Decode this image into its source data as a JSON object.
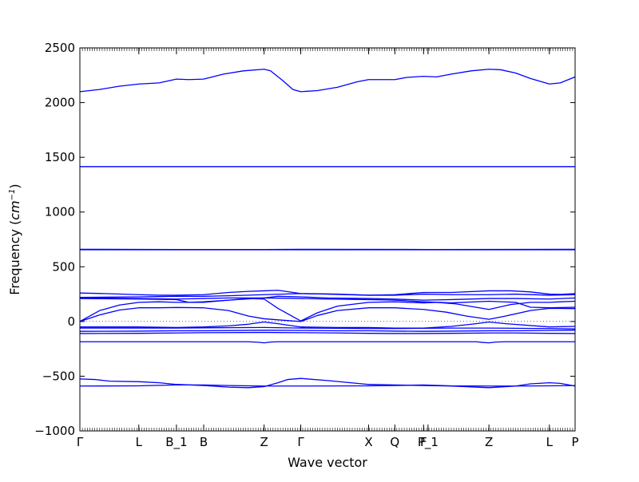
{
  "chart_data": {
    "type": "line",
    "title": "",
    "xlabel": "Wave vector",
    "ylabel": "Frequency (",
    "ylabel_unit_base": "cm",
    "ylabel_unit_exp": "−1",
    "ylabel_close": ")",
    "ylim": [
      -1000,
      2500
    ],
    "yticks": [
      -1000,
      -500,
      0,
      500,
      1000,
      1500,
      2000,
      2500
    ],
    "ytick_labels": [
      "−1000",
      "−500",
      "0",
      "500",
      "1000",
      "1500",
      "2000",
      "2500"
    ],
    "xlim": [
      0,
      100
    ],
    "high_symmetry_points": [
      {
        "label": "Γ",
        "x": 0
      },
      {
        "label": "L",
        "x": 11.9
      },
      {
        "label": "B_1",
        "x": 19.5
      },
      {
        "label": "B",
        "x": 25.0
      },
      {
        "label": "Z",
        "x": 37.2
      },
      {
        "label": "Γ",
        "x": 44.6
      },
      {
        "label": "X",
        "x": 58.3
      },
      {
        "label": "Q",
        "x": 63.6
      },
      {
        "label": "F",
        "x": 69.4
      },
      {
        "label": "P_1",
        "x": 70.3
      },
      {
        "label": "Z",
        "x": 82.6
      },
      {
        "label": "L",
        "x": 94.8
      },
      {
        "label": "P",
        "x": 100
      }
    ],
    "zero_line": true,
    "grid": false,
    "line_color": "#0000ff",
    "series": [
      {
        "x": [
          0,
          4,
          8,
          12,
          16,
          19.5,
          22,
          25,
          29,
          33,
          37.2,
          38.5,
          41,
          43,
          44.6,
          48,
          52,
          56,
          58.3,
          61,
          63.6,
          66,
          69.4,
          72,
          75,
          79,
          82.6,
          85,
          88,
          91,
          94.8,
          97,
          100
        ],
        "y": [
          2100,
          2120,
          2150,
          2170,
          2180,
          2215,
          2210,
          2215,
          2260,
          2290,
          2305,
          2290,
          2200,
          2120,
          2100,
          2110,
          2140,
          2190,
          2210,
          2210,
          2210,
          2230,
          2240,
          2235,
          2260,
          2290,
          2305,
          2300,
          2270,
          2220,
          2170,
          2180,
          2235
        ]
      },
      {
        "x": [
          0,
          100
        ],
        "y": [
          1415,
          1415
        ]
      },
      {
        "x": [
          0,
          19.5,
          37.2,
          44.6,
          70.3,
          100
        ],
        "y": [
          660,
          658,
          658,
          660,
          658,
          660
        ]
      },
      {
        "x": [
          0,
          100
        ],
        "y": [
          655,
          655
        ]
      },
      {
        "x": [
          0,
          5,
          11.9,
          16,
          19.5,
          25,
          30,
          34,
          37.2,
          40,
          44.6,
          50,
          58.3,
          63.6,
          69.4,
          75,
          82.6,
          87,
          91,
          94.8,
          97,
          100
        ],
        "y": [
          260,
          255,
          245,
          240,
          240,
          245,
          265,
          275,
          280,
          285,
          255,
          250,
          240,
          245,
          265,
          265,
          280,
          280,
          270,
          250,
          248,
          255
        ]
      },
      {
        "x": [
          0,
          11.9,
          19.5,
          25,
          30,
          37.2,
          44.6,
          52,
          58.3,
          63.6,
          69.4,
          75,
          82.6,
          88,
          94.8,
          100
        ],
        "y": [
          220,
          225,
          230,
          230,
          235,
          245,
          255,
          250,
          240,
          240,
          250,
          245,
          245,
          250,
          240,
          245
        ]
      },
      {
        "x": [
          0,
          11.9,
          19.5,
          25,
          30,
          37.2,
          40,
          44.6,
          50,
          58.3,
          63.6,
          69.4,
          75,
          82.6,
          88,
          94.8,
          100
        ],
        "y": [
          215,
          210,
          205,
          210,
          215,
          215,
          230,
          225,
          215,
          210,
          205,
          195,
          200,
          210,
          210,
          205,
          215
        ]
      },
      {
        "x": [
          0,
          11.9,
          19.5,
          22,
          25,
          30,
          37.2,
          44.6,
          50,
          58.3,
          63.6,
          69.4,
          75,
          82.6,
          88,
          91,
          94.8,
          100
        ],
        "y": [
          210,
          205,
          200,
          175,
          180,
          195,
          215,
          210,
          205,
          200,
          195,
          180,
          170,
          185,
          175,
          130,
          125,
          130
        ]
      },
      {
        "x": [
          0,
          4,
          8,
          11.9,
          16,
          19.5,
          25,
          30,
          34,
          37.2,
          40,
          44.6
        ],
        "y": [
          0,
          100,
          150,
          175,
          180,
          175,
          175,
          195,
          210,
          205,
          120,
          5
        ]
      },
      {
        "x": [
          44.6,
          48,
          52,
          58.3,
          63.6,
          69.4,
          72,
          76,
          82.6,
          87,
          91,
          94.8,
          97,
          100
        ],
        "y": [
          5,
          80,
          140,
          175,
          180,
          170,
          175,
          160,
          110,
          155,
          175,
          175,
          180,
          185
        ]
      },
      {
        "x": [
          0,
          4,
          8,
          11.9,
          16,
          19.5,
          25,
          30,
          34,
          37.2,
          40,
          44.6
        ],
        "y": [
          0,
          60,
          105,
          125,
          125,
          128,
          125,
          100,
          50,
          25,
          15,
          0
        ]
      },
      {
        "x": [
          44.6,
          48,
          52,
          58.3,
          63.6,
          69.4,
          74,
          78,
          82.6,
          86,
          91,
          94.8,
          100
        ],
        "y": [
          0,
          55,
          100,
          125,
          125,
          110,
          85,
          50,
          20,
          50,
          100,
          120,
          118
        ]
      },
      {
        "x": [
          0,
          11.9,
          19.5,
          25,
          30,
          34,
          37.2,
          40,
          44.6,
          52,
          58.3,
          63.6,
          69.4,
          75,
          80,
          82.6,
          86,
          94.8,
          100
        ],
        "y": [
          -50,
          -50,
          -55,
          -50,
          -40,
          -25,
          -5,
          -20,
          -50,
          -55,
          -55,
          -60,
          -60,
          -45,
          -20,
          -5,
          -20,
          -50,
          -45
        ]
      },
      {
        "x": [
          0,
          11.9,
          19.5,
          25,
          37.2,
          44.6,
          52,
          58.3,
          63.6,
          69.4,
          75,
          82.6,
          88,
          94.8,
          100
        ],
        "y": [
          -60,
          -60,
          -60,
          -58,
          -55,
          -60,
          -62,
          -65,
          -65,
          -62,
          -60,
          -60,
          -62,
          -65,
          -68
        ]
      },
      {
        "x": [
          0,
          11.9,
          19.5,
          25,
          37.2,
          44.6,
          52,
          58.3,
          63.6,
          69.4,
          75,
          82.6,
          88,
          94.8,
          100
        ],
        "y": [
          -90,
          -88,
          -85,
          -85,
          -80,
          -82,
          -85,
          -85,
          -88,
          -90,
          -88,
          -85,
          -85,
          -82,
          -80
        ]
      },
      {
        "x": [
          0,
          11.9,
          19.5,
          25,
          37.2,
          44.6,
          52,
          58.3,
          63.6,
          69.4,
          75,
          82.6,
          88,
          94.8,
          100
        ],
        "y": [
          -110,
          -108,
          -105,
          -102,
          -100,
          -102,
          -105,
          -108,
          -110,
          -110,
          -108,
          -105,
          -105,
          -108,
          -110
        ]
      },
      {
        "x": [
          0,
          11.9,
          19.5,
          25,
          34,
          36,
          37.2,
          38.5,
          40,
          44.6,
          58.3,
          70.3,
          80,
          81.5,
          82.6,
          84,
          86,
          94.8,
          100
        ],
        "y": [
          -185,
          -185,
          -185,
          -185,
          -185,
          -190,
          -195,
          -188,
          -185,
          -185,
          -185,
          -185,
          -185,
          -192,
          -195,
          -188,
          -185,
          -185,
          -185
        ]
      },
      {
        "x": [
          0,
          3,
          6,
          11.9,
          16,
          19.5,
          25,
          30,
          34,
          37.2,
          40,
          42,
          44.6,
          50,
          58.3,
          63.6,
          69.4,
          75,
          82.6,
          88,
          91,
          94.8,
          97,
          100
        ],
        "y": [
          -525,
          -530,
          -545,
          -550,
          -560,
          -575,
          -585,
          -600,
          -605,
          -595,
          -560,
          -530,
          -520,
          -540,
          -575,
          -580,
          -585,
          -590,
          -605,
          -590,
          -570,
          -560,
          -565,
          -590
        ]
      },
      {
        "x": [
          0,
          11.9,
          19.5,
          25,
          30,
          37.2,
          44.6,
          58.3,
          63.6,
          69.4,
          75,
          82.6,
          88,
          94.8,
          100
        ],
        "y": [
          -590,
          -588,
          -580,
          -580,
          -585,
          -590,
          -590,
          -588,
          -585,
          -580,
          -588,
          -590,
          -590,
          -588,
          -585
        ]
      }
    ]
  }
}
